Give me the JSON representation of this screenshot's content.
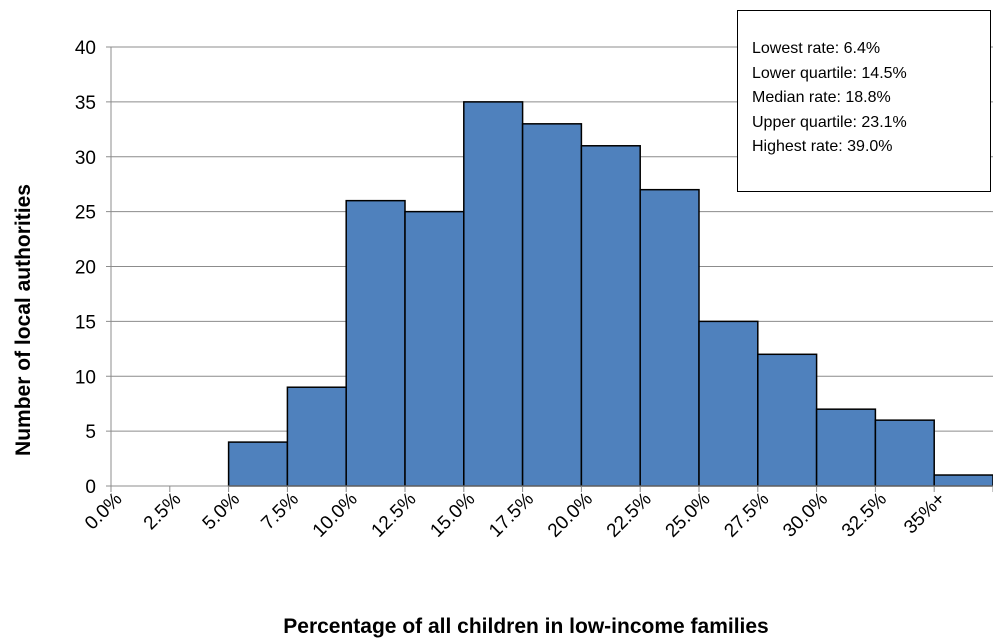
{
  "chart_data": {
    "type": "bar",
    "subtype": "histogram",
    "categories": [
      "0.0%",
      "2.5%",
      "5.0%",
      "7.5%",
      "10.0%",
      "12.5%",
      "15.0%",
      "17.5%",
      "20.0%",
      "22.5%",
      "25.0%",
      "27.5%",
      "30.0%",
      "32.5%",
      "35%+"
    ],
    "values": [
      0,
      0,
      4,
      9,
      26,
      25,
      35,
      33,
      31,
      27,
      15,
      12,
      7,
      6,
      1
    ],
    "xlabel": "Percentage of all children in low-income families",
    "ylabel": "Number of local authorities",
    "ylim": [
      0,
      40
    ],
    "yticks": [
      0,
      5,
      10,
      15,
      20,
      25,
      30,
      35,
      40
    ],
    "grid": "horizontal",
    "bar_color": "#4f81bd",
    "legend": "none"
  },
  "stats_box": {
    "lines": [
      "Lowest rate: 6.4%",
      "Lower quartile: 14.5%",
      "Median rate: 18.8%",
      "Upper quartile: 23.1%",
      "Highest rate: 39.0%"
    ]
  }
}
